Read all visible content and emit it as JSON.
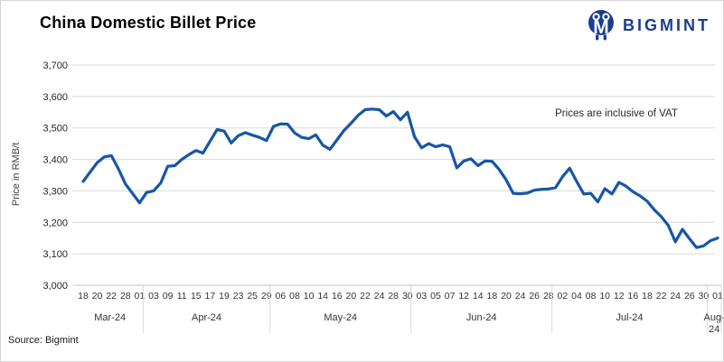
{
  "header": {
    "title": "China Domestic Billet Price",
    "brand": "BIGMINT"
  },
  "annotation": "Prices are inclusive of VAT",
  "source": "Source: Bigmint",
  "colors": {
    "line": "#1656A6",
    "grid": "#d9d9d9",
    "axis": "#bfbfbf",
    "brand_blue": "#1a3d91",
    "tick_text": "#333333"
  },
  "chart_data": {
    "type": "line",
    "title": "China Domestic Billet Price",
    "ylabel": "Price in RMB/t",
    "xlabel": "",
    "ylim": [
      3000,
      3700
    ],
    "y_tick_labels": [
      "3,700",
      "3,600",
      "3,500",
      "3,400",
      "3,300",
      "3,200",
      "3,100",
      "3,000"
    ],
    "grid": true,
    "legend": "none",
    "annotation": "Prices are inclusive of VAT",
    "x_groups": [
      {
        "month": "Mar-24",
        "days": [
          "18",
          "20",
          "22",
          "28",
          "01"
        ]
      },
      {
        "month": "Apr-24",
        "days": [
          "03",
          "09",
          "11",
          "15",
          "17",
          "19",
          "23",
          "25",
          "29"
        ]
      },
      {
        "month": "May-24",
        "days": [
          "06",
          "08",
          "10",
          "14",
          "16",
          "20",
          "22",
          "24",
          "28",
          "30"
        ]
      },
      {
        "month": "Jun-24",
        "days": [
          "03",
          "05",
          "07",
          "12",
          "14",
          "18",
          "20",
          "24",
          "26",
          "28"
        ]
      },
      {
        "month": "Jul-24",
        "days": [
          "02",
          "04",
          "08",
          "10",
          "12",
          "16",
          "18",
          "22",
          "24",
          "26",
          "30"
        ]
      },
      {
        "month": "Aug-24",
        "days": [
          "01"
        ]
      }
    ],
    "points_per_label": 2,
    "values": [
      3330,
      3360,
      3390,
      3408,
      3412,
      3370,
      3322,
      3292,
      3262,
      3295,
      3300,
      3325,
      3378,
      3380,
      3400,
      3415,
      3428,
      3420,
      3458,
      3495,
      3490,
      3452,
      3475,
      3485,
      3477,
      3470,
      3460,
      3505,
      3513,
      3512,
      3484,
      3470,
      3466,
      3478,
      3445,
      3432,
      3462,
      3492,
      3515,
      3540,
      3558,
      3560,
      3558,
      3538,
      3552,
      3526,
      3550,
      3472,
      3437,
      3450,
      3440,
      3446,
      3440,
      3373,
      3395,
      3402,
      3380,
      3395,
      3394,
      3368,
      3335,
      3292,
      3291,
      3293,
      3302,
      3305,
      3306,
      3310,
      3345,
      3372,
      3330,
      3290,
      3292,
      3265,
      3307,
      3290,
      3327,
      3315,
      3297,
      3284,
      3267,
      3240,
      3218,
      3190,
      3138,
      3178,
      3148,
      3120,
      3125,
      3142,
      3150
    ]
  }
}
